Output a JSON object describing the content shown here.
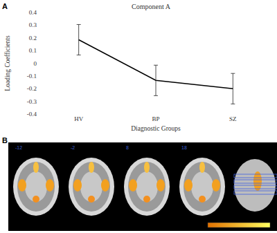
{
  "chart_data": {
    "type": "line",
    "title": "Component A",
    "x_label": "Diagnostic Groups",
    "y_label": "Loading Coefficients",
    "categories": [
      "HV",
      "BP",
      "SZ"
    ],
    "values": [
      0.185,
      -0.135,
      -0.2
    ],
    "errors": [
      0.12,
      0.12,
      0.12
    ],
    "color": "#000000",
    "ylim": [
      -0.4,
      0.4
    ],
    "yticks": [
      -0.4,
      -0.3,
      -0.2,
      -0.1,
      0,
      0.1,
      0.2,
      0.3,
      0.4
    ],
    "grid": false
  },
  "panel_labels": [
    "A",
    "B"
  ],
  "brain_panel": {
    "slice_labels": [
      "-12",
      "-2",
      "8",
      "18"
    ]
  }
}
